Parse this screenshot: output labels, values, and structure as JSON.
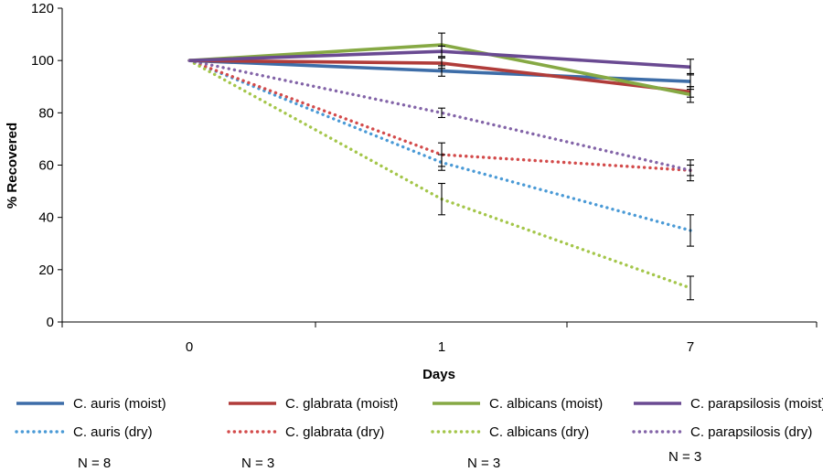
{
  "chart_data": {
    "type": "line",
    "title": "",
    "xlabel": "Days",
    "ylabel": "% Recovered",
    "categories": [
      "0",
      "1",
      "7"
    ],
    "ylim": [
      0,
      120
    ],
    "yticks": [
      0,
      20,
      40,
      60,
      80,
      100,
      120
    ],
    "grid": false,
    "legend_position": "bottom",
    "series": [
      {
        "name": "C. auris (moist)",
        "style": "solid",
        "color": "#3d6da8",
        "values": [
          100,
          96,
          92
        ],
        "errors": [
          0,
          2,
          3
        ]
      },
      {
        "name": "C. glabrata (moist)",
        "style": "solid",
        "color": "#b03c3a",
        "values": [
          100,
          99,
          88
        ],
        "errors": [
          0,
          2,
          2
        ]
      },
      {
        "name": "C. albicans (moist)",
        "style": "solid",
        "color": "#86a944",
        "values": [
          100,
          106,
          87
        ],
        "errors": [
          0,
          4.5,
          3
        ]
      },
      {
        "name": "C. parapsilosis (moist)",
        "style": "solid",
        "color": "#6a4a92",
        "values": [
          100,
          103.5,
          97.5
        ],
        "errors": [
          0,
          2,
          3
        ]
      },
      {
        "name": "C. auris (dry)",
        "style": "dotted",
        "color": "#4a9ad6",
        "values": [
          100,
          61,
          35
        ],
        "errors": [
          0,
          3,
          6
        ]
      },
      {
        "name": "C. glabrata (dry)",
        "style": "dotted",
        "color": "#d34b4b",
        "values": [
          100,
          64,
          58
        ],
        "errors": [
          0,
          4.5,
          4
        ]
      },
      {
        "name": "C. albicans (dry)",
        "style": "dotted",
        "color": "#a4c64a",
        "values": [
          100,
          47,
          13
        ],
        "errors": [
          0,
          6,
          4.5
        ]
      },
      {
        "name": "C. parapsilosis (dry)",
        "style": "dotted",
        "color": "#8364a8",
        "values": [
          100,
          80,
          58
        ],
        "errors": [
          0,
          1.8,
          2
        ]
      }
    ],
    "sample_sizes": [
      "N = 8",
      "N = 3",
      "N = 3",
      "N = 3"
    ]
  }
}
